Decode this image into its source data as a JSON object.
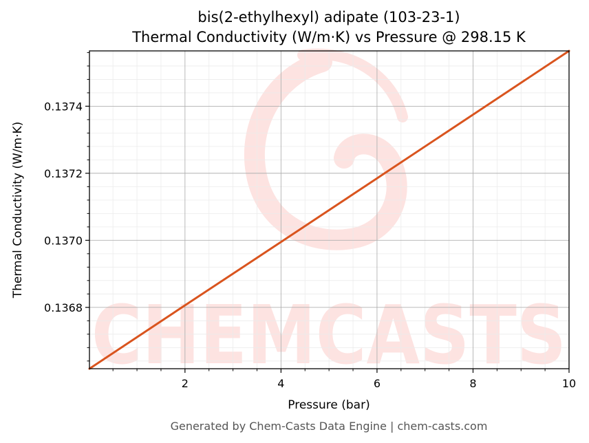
{
  "chart_data": {
    "type": "line",
    "title": "bis(2-ethylhexyl) adipate (103-23-1)",
    "subtitle": "Thermal Conductivity (W/m·K) vs Pressure @ 298.15 K",
    "xlabel": "Pressure (bar)",
    "ylabel": "Thermal Conductivity (W/m·K)",
    "xlim": [
      0.01,
      10
    ],
    "ylim": [
      0.136617,
      0.137565
    ],
    "x_ticks": [
      2,
      4,
      6,
      8,
      10
    ],
    "x_tick_labels": [
      "2",
      "4",
      "6",
      "8",
      "10"
    ],
    "y_ticks": [
      0.1368,
      0.137,
      0.1372,
      0.1374
    ],
    "y_tick_labels": [
      "0.1368",
      "0.1370",
      "0.1372",
      "0.1374"
    ],
    "grid": true,
    "series": [
      {
        "x": [
          0.01,
          2,
          4,
          6,
          8,
          10
        ],
        "y": [
          0.136617,
          0.136806,
          0.136995,
          0.137185,
          0.137375,
          0.137565
        ],
        "color": "#d9541e"
      }
    ]
  },
  "watermark": {
    "text": "CHEMCASTS",
    "color": "#fde3e1"
  },
  "footer": {
    "text": "Generated by Chem-Casts Data Engine | chem-casts.com"
  }
}
